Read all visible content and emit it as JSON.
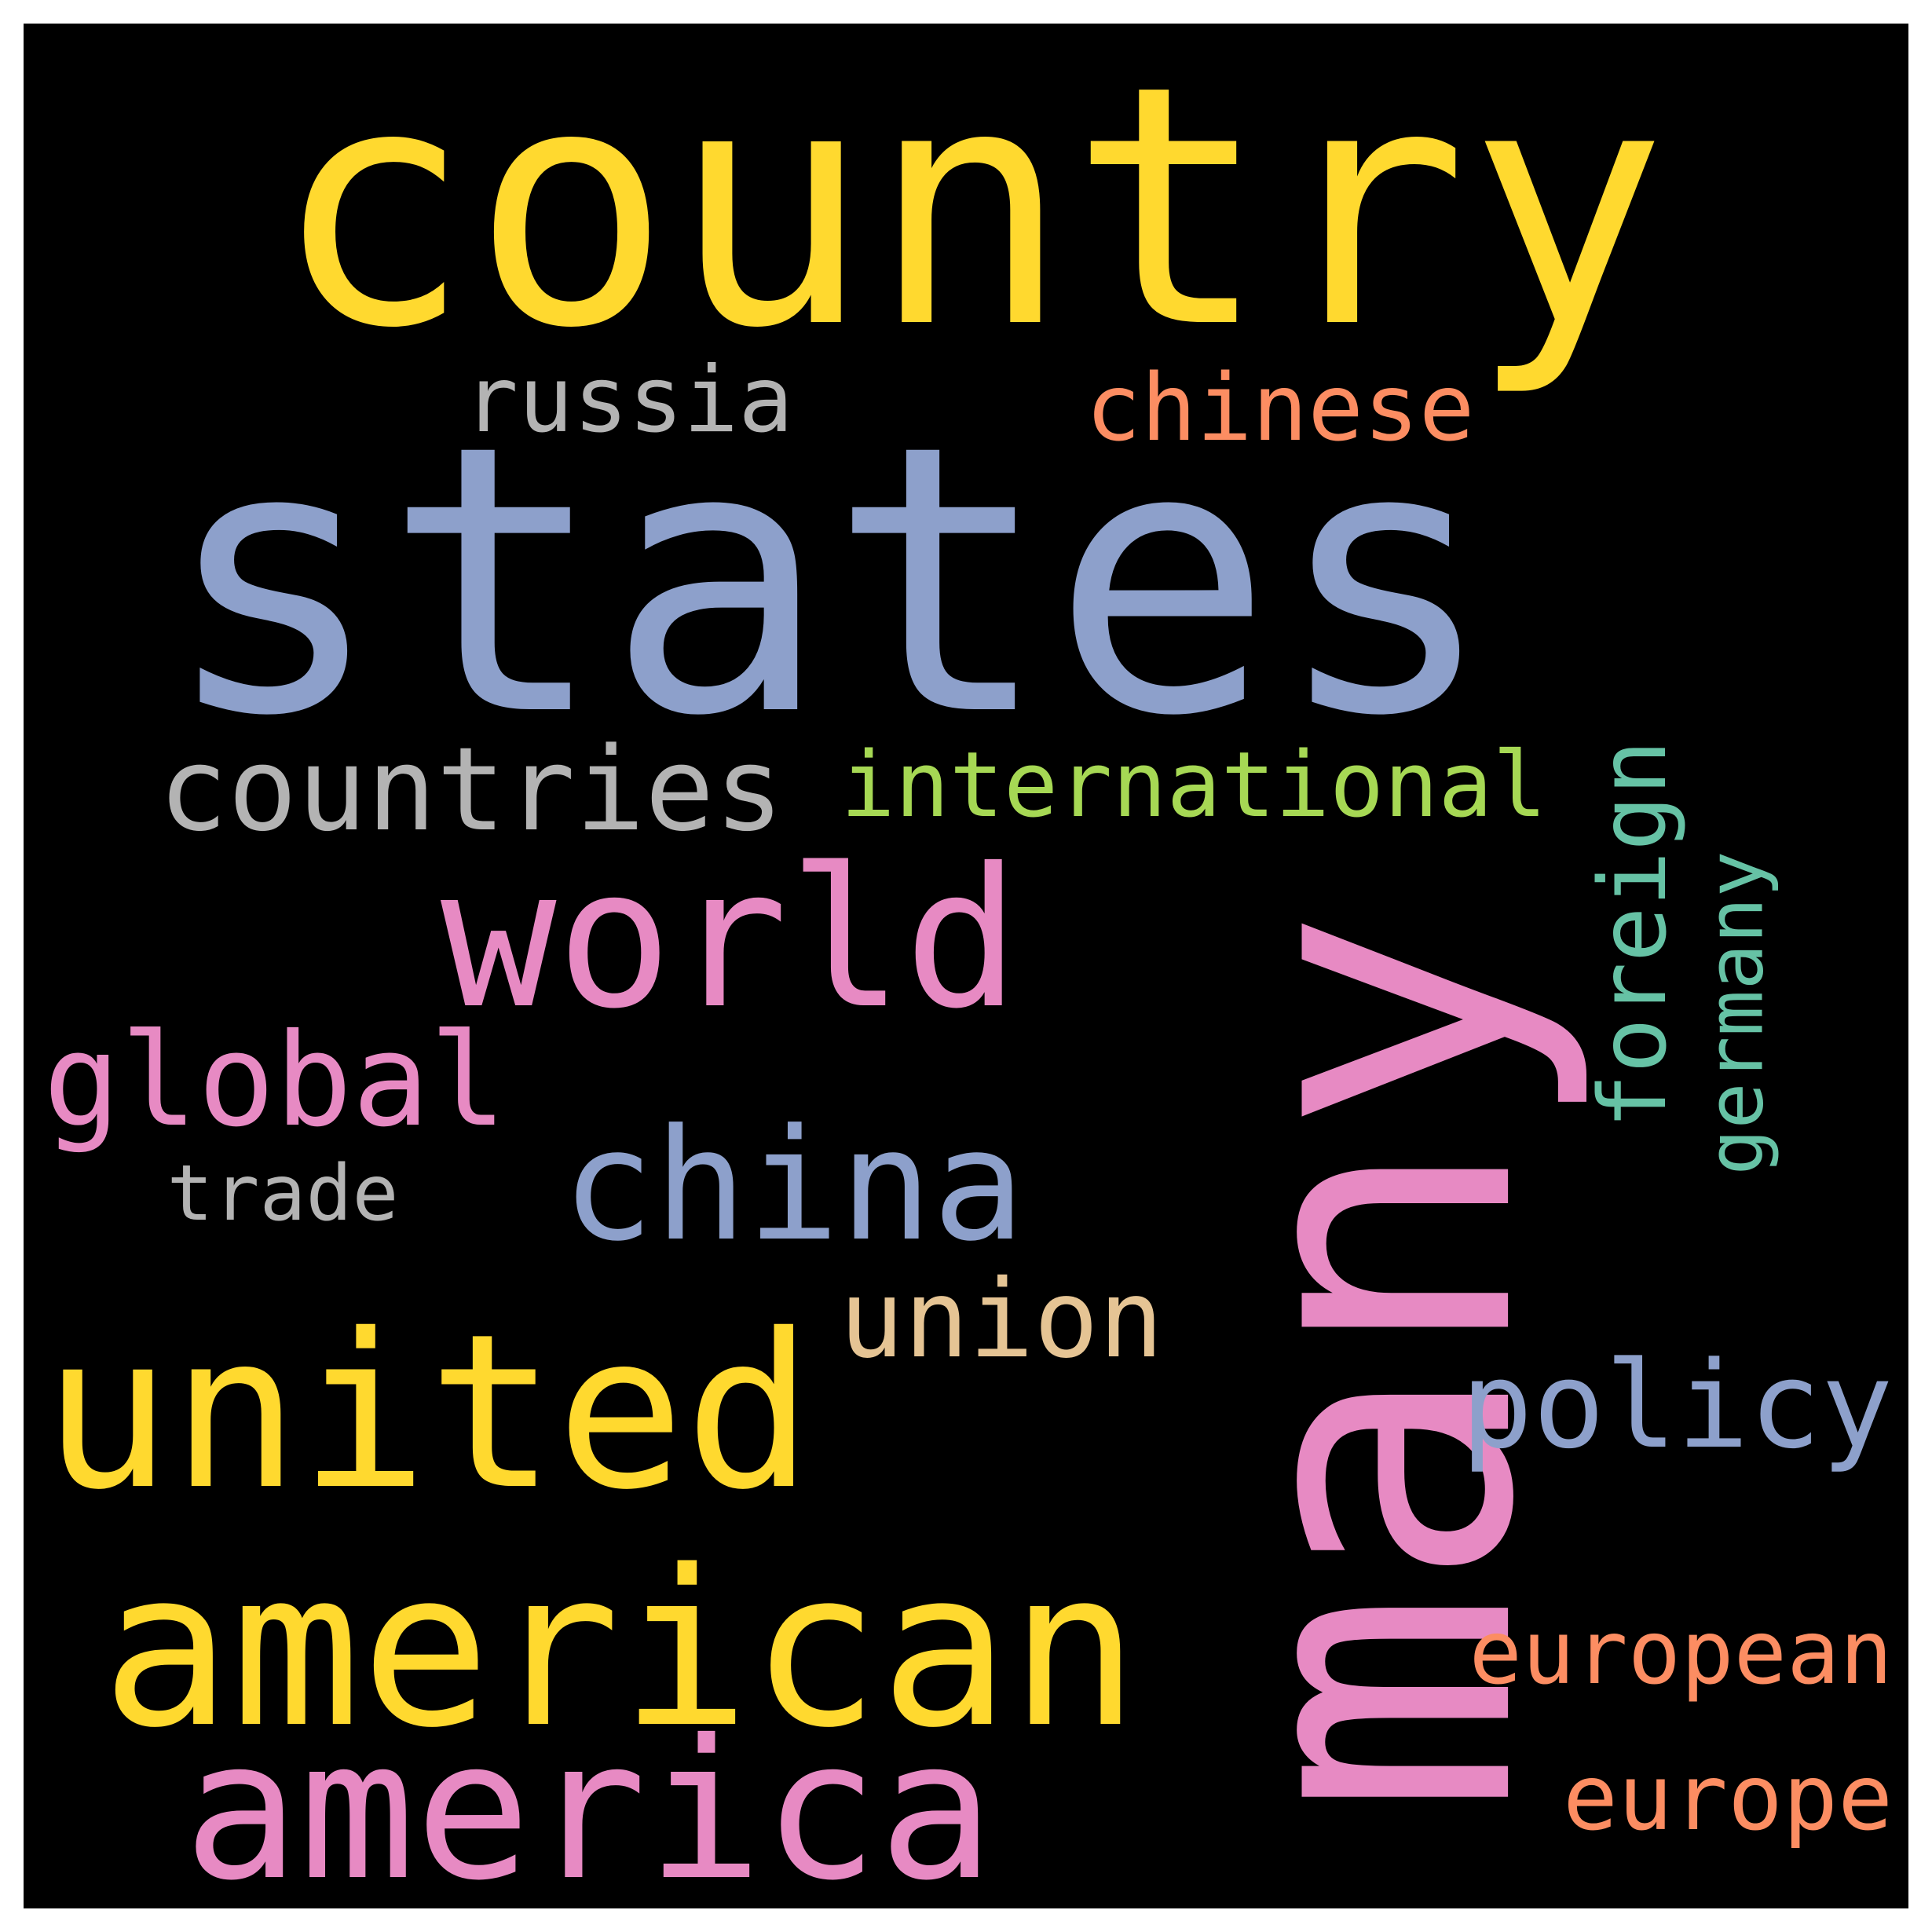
{
  "cloud": {
    "background": "#000000",
    "words": [
      {
        "id": "country",
        "text": "country",
        "color": "#FFD92F",
        "orientation": "horizontal"
      },
      {
        "id": "states",
        "text": "states",
        "color": "#8DA0CB",
        "orientation": "horizontal"
      },
      {
        "id": "many",
        "text": "many",
        "color": "#E78AC3",
        "orientation": "vertical"
      },
      {
        "id": "russia",
        "text": "russia",
        "color": "#B3B3B3",
        "orientation": "horizontal"
      },
      {
        "id": "chinese",
        "text": "chinese",
        "color": "#FC8D62",
        "orientation": "horizontal"
      },
      {
        "id": "countries",
        "text": "countries",
        "color": "#B3B3B3",
        "orientation": "horizontal"
      },
      {
        "id": "international",
        "text": "international",
        "color": "#A6D854",
        "orientation": "horizontal"
      },
      {
        "id": "foreign",
        "text": "foreign",
        "color": "#66C2A5",
        "orientation": "vertical"
      },
      {
        "id": "germany",
        "text": "germany",
        "color": "#66C2A5",
        "orientation": "vertical"
      },
      {
        "id": "world",
        "text": "world",
        "color": "#E78AC3",
        "orientation": "horizontal"
      },
      {
        "id": "global",
        "text": "global",
        "color": "#E78AC3",
        "orientation": "horizontal"
      },
      {
        "id": "china",
        "text": "china",
        "color": "#8DA0CB",
        "orientation": "horizontal"
      },
      {
        "id": "trade",
        "text": "trade",
        "color": "#B3B3B3",
        "orientation": "horizontal"
      },
      {
        "id": "union",
        "text": "union",
        "color": "#E5C494",
        "orientation": "horizontal"
      },
      {
        "id": "united",
        "text": "united",
        "color": "#FFD92F",
        "orientation": "horizontal"
      },
      {
        "id": "policy",
        "text": "policy",
        "color": "#8DA0CB",
        "orientation": "horizontal"
      },
      {
        "id": "american",
        "text": "american",
        "color": "#FFD92F",
        "orientation": "horizontal"
      },
      {
        "id": "european",
        "text": "european",
        "color": "#FC8D62",
        "orientation": "horizontal"
      },
      {
        "id": "america",
        "text": "america",
        "color": "#E78AC3",
        "orientation": "horizontal"
      },
      {
        "id": "europe",
        "text": "europe",
        "color": "#FC8D62",
        "orientation": "horizontal"
      }
    ]
  }
}
